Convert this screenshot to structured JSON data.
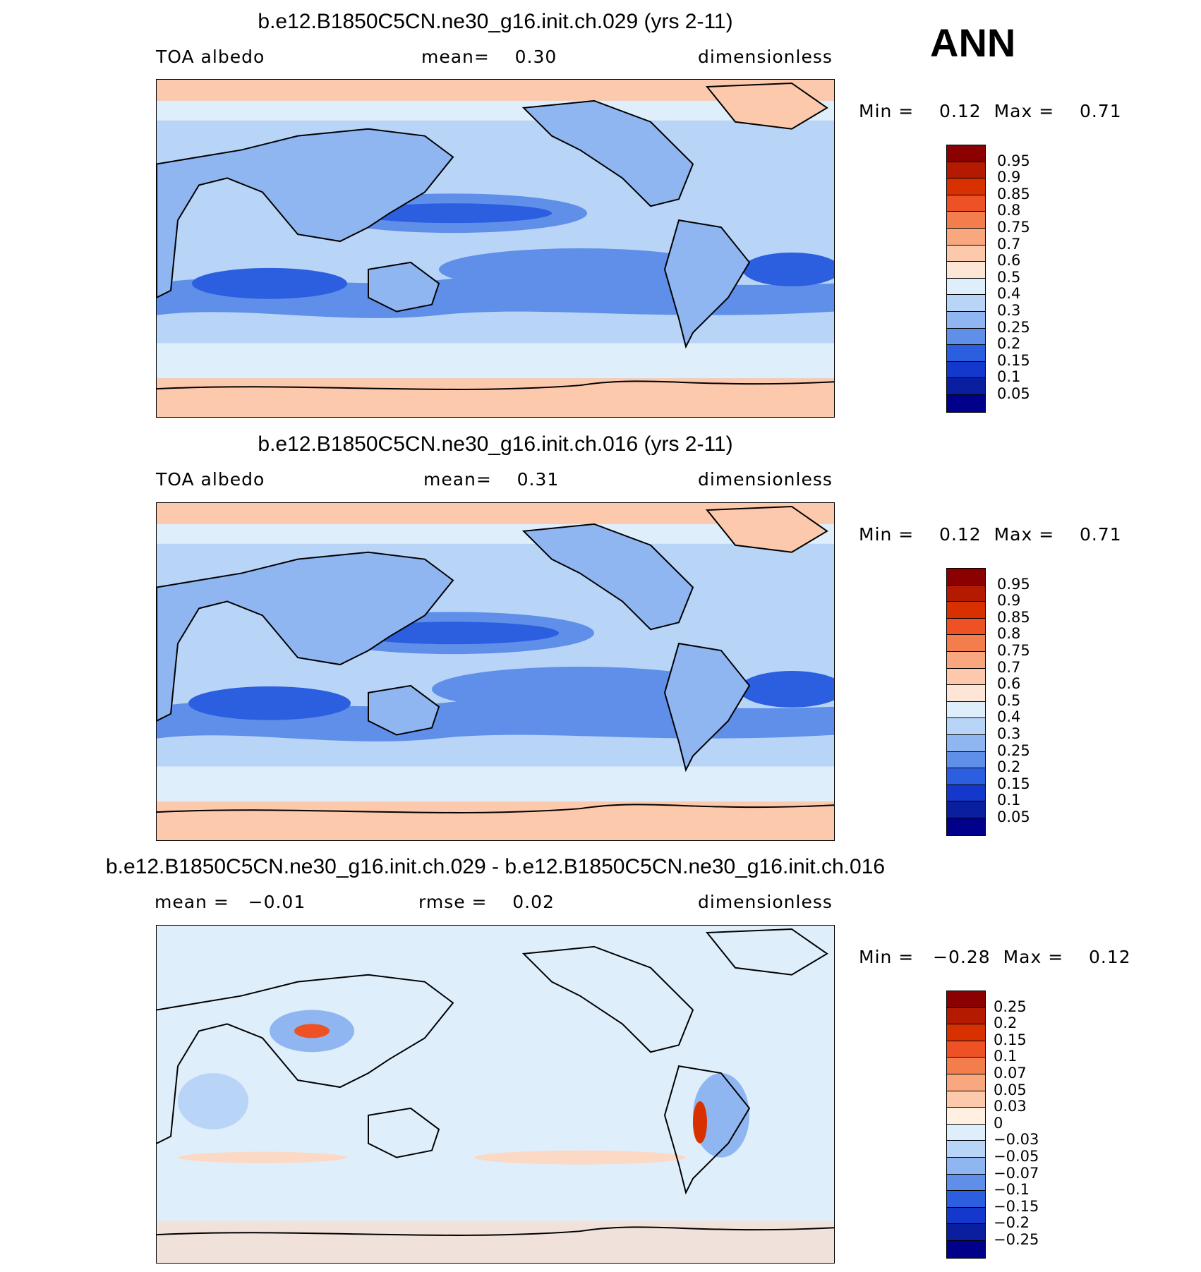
{
  "season": "ANN",
  "panels": [
    {
      "title": "b.e12.B1850C5CN.ne30_g16.init.ch.029 (yrs 2-11)",
      "left_label": "TOA albedo",
      "center_label": "mean=    0.30",
      "right_label": "dimensionless",
      "minmax": "Min =    0.12  Max =    0.71",
      "legend": [
        "0.95",
        "0.9",
        "0.85",
        "0.8",
        "0.75",
        "0.7",
        "0.6",
        "0.5",
        "0.4",
        "0.3",
        "0.25",
        "0.2",
        "0.15",
        "0.1",
        "0.05"
      ],
      "colors": [
        "#8b0000",
        "#b31a00",
        "#d93000",
        "#ee5224",
        "#f47d4d",
        "#f9a77f",
        "#fcc9ad",
        "#fee6d6",
        "#dfeefb",
        "#b8d4f7",
        "#8fb6f1",
        "#5f8fe8",
        "#2c5fe0",
        "#1437cc",
        "#0a1fa0",
        "#00008b"
      ]
    },
    {
      "title": "b.e12.B1850C5CN.ne30_g16.init.ch.016 (yrs 2-11)",
      "left_label": "TOA albedo",
      "center_label": "mean=    0.31",
      "right_label": "dimensionless",
      "minmax": "Min =    0.12  Max =    0.71",
      "legend": [
        "0.95",
        "0.9",
        "0.85",
        "0.8",
        "0.75",
        "0.7",
        "0.6",
        "0.5",
        "0.4",
        "0.3",
        "0.25",
        "0.2",
        "0.15",
        "0.1",
        "0.05"
      ],
      "colors": [
        "#8b0000",
        "#b31a00",
        "#d93000",
        "#ee5224",
        "#f47d4d",
        "#f9a77f",
        "#fcc9ad",
        "#fee6d6",
        "#dfeefb",
        "#b8d4f7",
        "#8fb6f1",
        "#5f8fe8",
        "#2c5fe0",
        "#1437cc",
        "#0a1fa0",
        "#00008b"
      ]
    },
    {
      "title": "b.e12.B1850C5CN.ne30_g16.init.ch.029 - b.e12.B1850C5CN.ne30_g16.init.ch.016",
      "left_label": "mean =   −0.01",
      "center_label": "rmse =    0.02",
      "right_label": "dimensionless",
      "minmax": "Min =   −0.28  Max =    0.12",
      "legend": [
        "0.25",
        "0.2",
        "0.15",
        "0.1",
        "0.07",
        "0.05",
        "0.03",
        "0",
        "−0.03",
        "−0.05",
        "−0.07",
        "−0.1",
        "−0.15",
        "−0.2",
        "−0.25"
      ],
      "colors": [
        "#8b0000",
        "#b31a00",
        "#d93000",
        "#ee5224",
        "#f47d4d",
        "#f9a77f",
        "#fcc9ad",
        "#fff0e2",
        "#dfeefb",
        "#b8d4f7",
        "#8fb6f1",
        "#5f8fe8",
        "#2c5fe0",
        "#1437cc",
        "#0a1fa0",
        "#00008b"
      ]
    }
  ]
}
